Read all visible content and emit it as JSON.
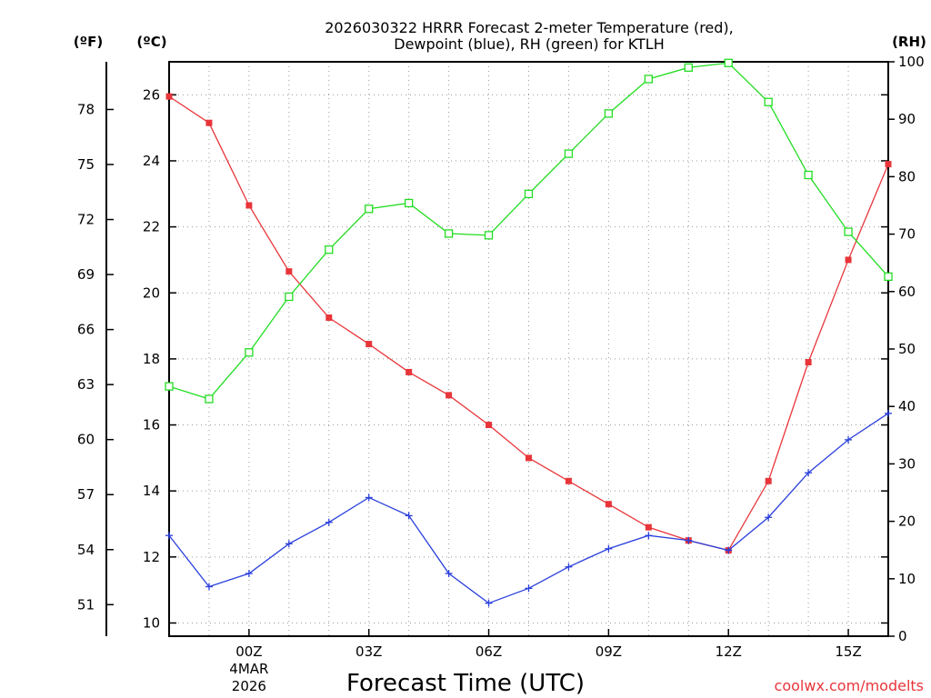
{
  "chart_data": {
    "type": "line",
    "title_lines": [
      "2026030322 HRRR Forecast 2-meter Temperature (red),",
      "Dewpoint (blue), RH (green) for KTLH"
    ],
    "xlabel": "Forecast Time (UTC)",
    "credit": "coolwx.com/modelts",
    "x_hours": [
      -2,
      -1,
      0,
      1,
      2,
      3,
      4,
      5,
      6,
      7,
      8,
      9,
      10,
      11,
      12,
      13,
      14,
      15,
      16
    ],
    "x_ticks": [
      {
        "hour": 0,
        "label": "00Z",
        "sub1": "4MAR",
        "sub2": "2026"
      },
      {
        "hour": 3,
        "label": "03Z"
      },
      {
        "hour": 6,
        "label": "06Z"
      },
      {
        "hour": 9,
        "label": "09Z"
      },
      {
        "hour": 12,
        "label": "12Z"
      },
      {
        "hour": 15,
        "label": "15Z"
      }
    ],
    "xlim": [
      -2,
      16
    ],
    "celsius_axis": {
      "unit": "(ºC)",
      "ylim": [
        9.6,
        27.0
      ],
      "ticks": [
        10,
        12,
        14,
        16,
        18,
        20,
        22,
        24,
        26
      ]
    },
    "fahrenheit_axis": {
      "unit": "(ºF)",
      "ticks": [
        51,
        54,
        57,
        60,
        63,
        66,
        69,
        72,
        75,
        78
      ]
    },
    "rh_axis": {
      "unit": "(RH)",
      "ylim": [
        0,
        100
      ],
      "ticks": [
        0,
        10,
        20,
        30,
        40,
        50,
        60,
        70,
        80,
        90,
        100
      ]
    },
    "series": [
      {
        "name": "2-meter Temperature",
        "color": "#e8353a",
        "axis": "celsius",
        "marker": "filled-square",
        "values": [
          25.95,
          25.15,
          22.65,
          20.65,
          19.25,
          18.45,
          17.6,
          16.9,
          16.0,
          15.0,
          14.3,
          13.6,
          12.9,
          12.5,
          12.2,
          14.3,
          17.9,
          21.0,
          23.9
        ]
      },
      {
        "name": "Dewpoint",
        "color": "#2a3fdc",
        "axis": "celsius",
        "marker": "plus",
        "values": [
          12.65,
          11.1,
          11.5,
          12.4,
          13.05,
          13.8,
          13.25,
          11.5,
          10.6,
          11.05,
          11.7,
          12.25,
          12.65,
          12.5,
          12.2,
          13.2,
          14.55,
          15.55,
          16.35
        ]
      },
      {
        "name": "RH",
        "color": "#22dd22",
        "axis": "rh",
        "marker": "open-square",
        "values": [
          43.5,
          41.3,
          49.4,
          59.1,
          67.3,
          74.4,
          75.4,
          70.1,
          69.8,
          77.0,
          84.0,
          91.0,
          97.0,
          99.0,
          99.8,
          93.0,
          80.3,
          70.4,
          62.6
        ]
      }
    ]
  }
}
